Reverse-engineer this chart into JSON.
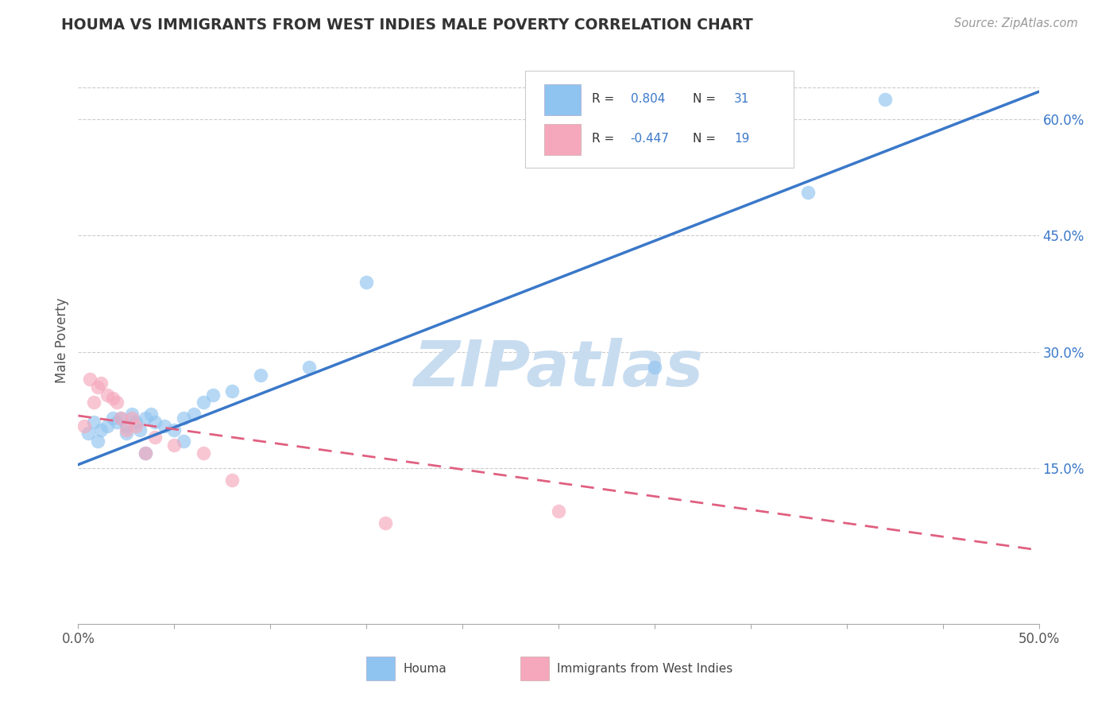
{
  "title": "HOUMA VS IMMIGRANTS FROM WEST INDIES MALE POVERTY CORRELATION CHART",
  "source": "Source: ZipAtlas.com",
  "ylabel": "Male Poverty",
  "xlim": [
    0.0,
    0.5
  ],
  "ylim": [
    -0.05,
    0.68
  ],
  "yticks_right": [
    0.15,
    0.3,
    0.45,
    0.6
  ],
  "ytick_labels_right": [
    "15.0%",
    "30.0%",
    "45.0%",
    "60.0%"
  ],
  "legend_label1": "Houma",
  "legend_label2": "Immigrants from West Indies",
  "color_blue": "#90C4F0",
  "color_blue_line": "#3A78C9",
  "color_pink": "#F5A8BC",
  "color_pink_line": "#E06080",
  "color_title": "#333333",
  "watermark_color": "#C8DCF0",
  "houma_x": [
    0.005,
    0.008,
    0.01,
    0.012,
    0.015,
    0.018,
    0.02,
    0.022,
    0.025,
    0.028,
    0.03,
    0.032,
    0.035,
    0.038,
    0.04,
    0.045,
    0.05,
    0.055,
    0.06,
    0.065,
    0.07,
    0.08,
    0.095,
    0.12,
    0.15,
    0.3,
    0.38,
    0.42,
    0.025,
    0.035,
    0.055
  ],
  "houma_y": [
    0.195,
    0.21,
    0.185,
    0.2,
    0.205,
    0.215,
    0.21,
    0.215,
    0.205,
    0.22,
    0.21,
    0.2,
    0.215,
    0.22,
    0.21,
    0.205,
    0.2,
    0.215,
    0.22,
    0.235,
    0.245,
    0.25,
    0.27,
    0.28,
    0.39,
    0.28,
    0.505,
    0.625,
    0.195,
    0.17,
    0.185
  ],
  "wi_x": [
    0.003,
    0.006,
    0.008,
    0.01,
    0.012,
    0.015,
    0.018,
    0.02,
    0.022,
    0.025,
    0.028,
    0.03,
    0.035,
    0.04,
    0.05,
    0.25,
    0.16,
    0.065,
    0.08
  ],
  "wi_y": [
    0.205,
    0.265,
    0.235,
    0.255,
    0.26,
    0.245,
    0.24,
    0.235,
    0.215,
    0.2,
    0.215,
    0.205,
    0.17,
    0.19,
    0.18,
    0.095,
    0.08,
    0.17,
    0.135
  ],
  "background_color": "#FFFFFF",
  "grid_color": "#CCCCCC",
  "blue_line_x0": 0.0,
  "blue_line_y0": 0.155,
  "blue_line_x1": 0.5,
  "blue_line_y1": 0.635,
  "pink_line_x0": 0.0,
  "pink_line_y0": 0.218,
  "pink_line_x1": 0.5,
  "pink_line_y1": 0.045
}
